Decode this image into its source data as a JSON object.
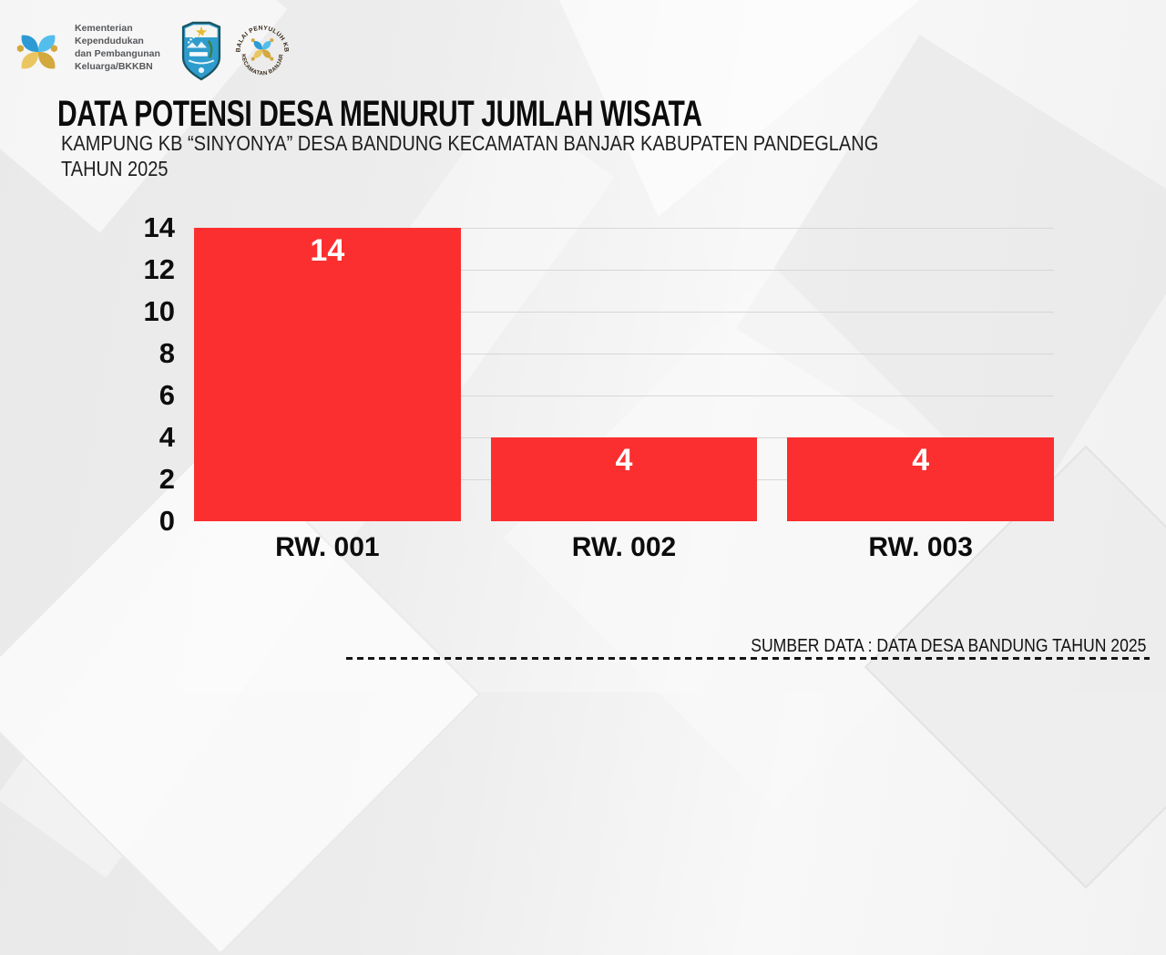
{
  "header": {
    "ministry_text_lines": [
      "Kementerian",
      "Kependudukan",
      "dan Pembangunan",
      "Keluarga/BKKBN"
    ],
    "badge": {
      "top_text": "BALAI PENYULUH KB",
      "bottom_text": "KECAMATAN BANJAR"
    }
  },
  "title_block": {
    "title": "DATA POTENSI DESA MENURUT JUMLAH WISATA",
    "subtitle_line1": "KAMPUNG KB “SINYONYA” DESA BANDUNG KECAMATAN BANJAR KABUPATEN PANDEGLANG",
    "subtitle_line2": "TAHUN 2025"
  },
  "chart_data": {
    "type": "bar",
    "title": "DATA POTENSI DESA MENURUT JUMLAH WISATA",
    "categories": [
      "RW. 001",
      "RW. 002",
      "RW. 003"
    ],
    "values": [
      14,
      4,
      4
    ],
    "xlabel": "",
    "ylabel": "",
    "ylim": [
      0,
      14
    ],
    "yticks": [
      0,
      2,
      4,
      6,
      8,
      10,
      12,
      14
    ],
    "grid": true,
    "gridline_color": "#d7d7d7",
    "bar_color": "#fb2f2f",
    "value_label_color": "#ffffff",
    "value_labels_shown": [
      14,
      4,
      4
    ],
    "legend": "none"
  },
  "footer": {
    "source_text": "SUMBER DATA : DATA DESA BANDUNG TAHUN 2025"
  },
  "colors": {
    "accent_red": "#fb2f2f",
    "text_black": "#0c0c0c",
    "ministry_gray": "#56585b",
    "background": "#ededed"
  }
}
